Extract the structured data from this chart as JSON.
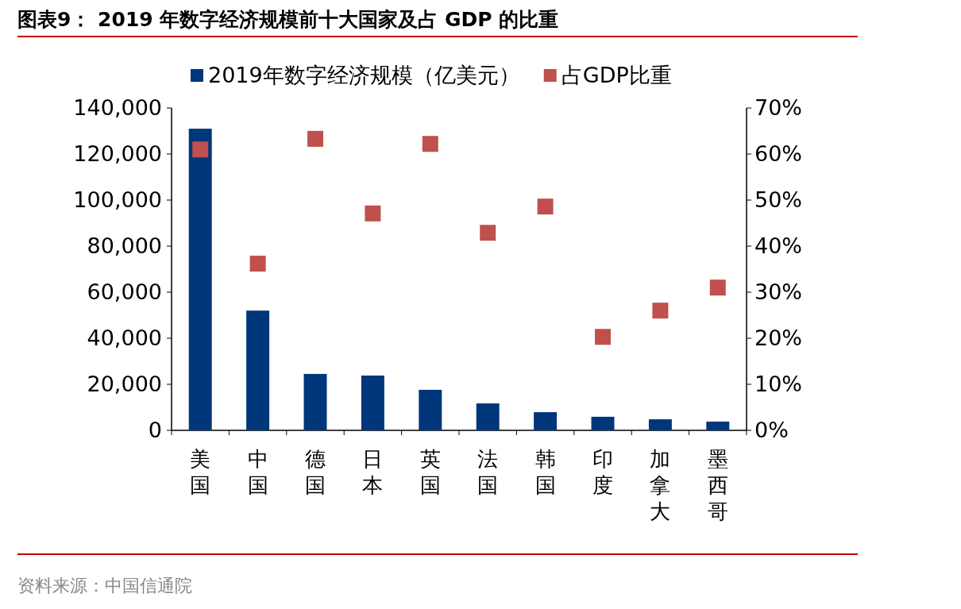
{
  "chart_data": {
    "type": "bar",
    "title": "图表9：  2019 年数字经济规模前十大国家及占 GDP 的比重",
    "categories": [
      "美国",
      "中国",
      "德国",
      "日本",
      "英国",
      "法国",
      "韩国",
      "印度",
      "加拿大",
      "墨西哥"
    ],
    "series": [
      {
        "name": "2019年数字经济规模（亿美元）",
        "color": "#00367a",
        "values": [
          131000,
          52000,
          24500,
          23800,
          17600,
          11700,
          7900,
          5900,
          4800,
          3800
        ]
      },
      {
        "name": "占GDP比重",
        "type": "scatter",
        "axis": "y2",
        "marker": "square",
        "color": "#c0504d",
        "values": [
          61.0,
          36.2,
          63.3,
          47.1,
          62.2,
          42.9,
          48.6,
          20.3,
          26.0,
          31.0
        ]
      }
    ],
    "ylim": [
      0,
      140000
    ],
    "yticks": [
      {
        "value": 0,
        "label": "0"
      },
      {
        "value": 20000,
        "label": "20,000"
      },
      {
        "value": 40000,
        "label": "40,000"
      },
      {
        "value": 60000,
        "label": "60,000"
      },
      {
        "value": 80000,
        "label": "80,000"
      },
      {
        "value": 100000,
        "label": "100,000"
      },
      {
        "value": 120000,
        "label": "120,000"
      },
      {
        "value": 140000,
        "label": "140,000"
      }
    ],
    "y2lim": [
      0,
      70
    ],
    "y2ticks": [
      {
        "value": 0,
        "label": "0%"
      },
      {
        "value": 10,
        "label": "10%"
      },
      {
        "value": 20,
        "label": "20%"
      },
      {
        "value": 30,
        "label": "30%"
      },
      {
        "value": 40,
        "label": "40%"
      },
      {
        "value": 50,
        "label": "50%"
      },
      {
        "value": 60,
        "label": "60%"
      },
      {
        "value": 70,
        "label": "70%"
      }
    ],
    "legend": "top",
    "annotations": [
      "资料来源：中国信通院"
    ]
  }
}
